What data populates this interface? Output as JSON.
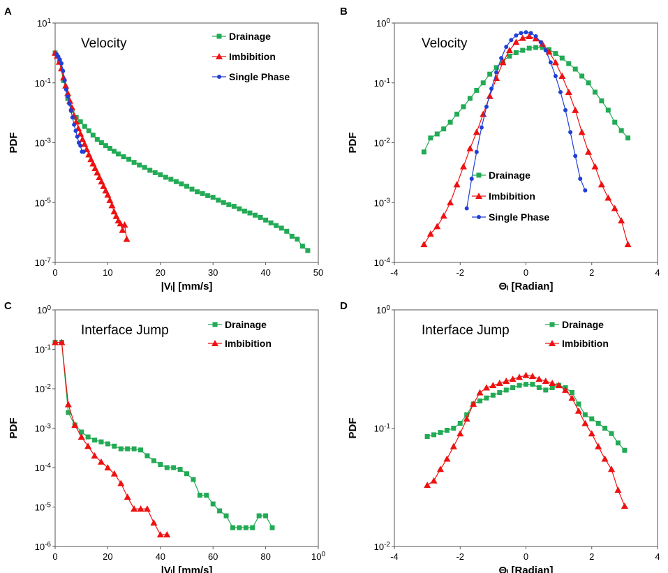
{
  "colors": {
    "Drainage": "#22aa55",
    "Imbibition": "#ee1111",
    "Single Phase": "#1f3fd6"
  },
  "chart_data": [
    {
      "panel": "A",
      "type": "line",
      "title": "Velocity",
      "xlabel": "|Vᵢ|  [mm/s]",
      "ylabel": "PDF",
      "xlim": [
        0,
        50
      ],
      "xticks": [
        "0",
        "10",
        "20",
        "30",
        "40",
        "50"
      ],
      "ylog": [
        -7,
        1
      ],
      "yticks": [
        "10-7",
        "10-5",
        "10-3",
        "10-1",
        "101"
      ],
      "series": [
        {
          "name": "Drainage",
          "marker": "square",
          "x": [
            0,
            0.8,
            1.6,
            2.4,
            3.2,
            4.0,
            4.8,
            5.6,
            6.4,
            7.2,
            8.0,
            8.8,
            9.6,
            10.4,
            11.2,
            12.0,
            13.0,
            14.0,
            15.0,
            16.0,
            17.0,
            18.0,
            19.0,
            20.0,
            21.0,
            22.0,
            23.0,
            24.0,
            25.0,
            26.0,
            27.0,
            28.0,
            29.0,
            30.0,
            31.0,
            32.0,
            33.0,
            34.0,
            35.0,
            36.0,
            37.0,
            38.0,
            39.0,
            40.0,
            41.0,
            42.0,
            43.0,
            44.0,
            45.0,
            46.0,
            47.0,
            48.0
          ],
          "y": [
            1.0,
            0.5,
            0.12,
            0.03,
            0.012,
            0.007,
            0.005,
            0.0035,
            0.0025,
            0.0018,
            0.0013,
            0.001,
            0.0008,
            0.00065,
            0.00052,
            0.00042,
            0.00034,
            0.00028,
            0.00022,
            0.00018,
            0.00015,
            0.00012,
            0.0001,
            8.5e-05,
            7e-05,
            6e-05,
            5e-05,
            4.2e-05,
            3.5e-05,
            2.8e-05,
            2.3e-05,
            2e-05,
            1.7e-05,
            1.5e-05,
            1.2e-05,
            1e-05,
            8.5e-06,
            7.5e-06,
            6.2e-06,
            5.2e-06,
            4.5e-06,
            3.8e-06,
            3.2e-06,
            2.6e-06,
            2.1e-06,
            1.7e-06,
            1.4e-06,
            1.1e-06,
            7.5e-07,
            6e-07,
            3.5e-07,
            2.5e-07
          ]
        },
        {
          "name": "Imbibition",
          "marker": "triangle",
          "x": [
            0,
            0.4,
            0.8,
            1.2,
            1.6,
            2.0,
            2.4,
            2.8,
            3.2,
            3.6,
            4.0,
            4.4,
            4.8,
            5.2,
            5.6,
            6.0,
            6.4,
            6.8,
            7.2,
            7.6,
            8.0,
            8.4,
            8.8,
            9.2,
            9.6,
            10.0,
            10.4,
            10.8,
            11.2,
            11.6,
            12.0,
            12.4,
            12.8,
            13.2,
            13.6
          ],
          "y": [
            1.0,
            0.8,
            0.5,
            0.3,
            0.15,
            0.08,
            0.045,
            0.025,
            0.015,
            0.008,
            0.005,
            0.003,
            0.002,
            0.0013,
            0.0009,
            0.0006,
            0.0004,
            0.00028,
            0.0002,
            0.00014,
            0.0001,
            7e-05,
            5e-05,
            3.5e-05,
            2.5e-05,
            1.8e-05,
            1.2e-05,
            8e-06,
            5e-06,
            3.5e-06,
            2.5e-06,
            2e-06,
            1.2e-06,
            1.8e-06,
            6e-07
          ]
        },
        {
          "name": "Single Phase",
          "marker": "circle",
          "x": [
            0.3,
            0.6,
            0.9,
            1.2,
            1.5,
            1.8,
            2.1,
            2.4,
            2.7,
            3.0,
            3.3,
            3.6,
            3.9,
            4.2,
            4.5,
            4.8,
            5.1,
            5.4
          ],
          "y": [
            0.9,
            0.75,
            0.6,
            0.45,
            0.25,
            0.12,
            0.06,
            0.035,
            0.02,
            0.012,
            0.007,
            0.004,
            0.0025,
            0.0016,
            0.001,
            0.0008,
            0.0005,
            0.0005
          ]
        }
      ],
      "legend_position": "top-right"
    },
    {
      "panel": "B",
      "type": "line",
      "title": "Velocity",
      "xlabel": "Θᵢ [Radian]",
      "ylabel": "PDF",
      "xlim": [
        -4,
        4
      ],
      "xticks": [
        "-4",
        "-2",
        "0",
        "2",
        "4"
      ],
      "ylog": [
        -4,
        0
      ],
      "yticks": [
        "10-4",
        "10-3",
        "10-2",
        "10-1",
        "100"
      ],
      "series": [
        {
          "name": "Drainage",
          "marker": "square",
          "x": [
            -3.1,
            -2.9,
            -2.7,
            -2.5,
            -2.3,
            -2.1,
            -1.9,
            -1.7,
            -1.5,
            -1.3,
            -1.1,
            -0.9,
            -0.7,
            -0.5,
            -0.3,
            -0.1,
            0.1,
            0.3,
            0.5,
            0.7,
            0.9,
            1.1,
            1.3,
            1.5,
            1.7,
            1.9,
            2.1,
            2.3,
            2.5,
            2.7,
            2.9,
            3.1
          ],
          "y": [
            0.007,
            0.012,
            0.014,
            0.017,
            0.022,
            0.03,
            0.04,
            0.055,
            0.075,
            0.1,
            0.14,
            0.18,
            0.23,
            0.28,
            0.32,
            0.35,
            0.38,
            0.39,
            0.39,
            0.36,
            0.31,
            0.26,
            0.21,
            0.17,
            0.13,
            0.1,
            0.07,
            0.05,
            0.035,
            0.022,
            0.016,
            0.012
          ]
        },
        {
          "name": "Imbibition",
          "marker": "triangle",
          "x": [
            -3.1,
            -2.9,
            -2.7,
            -2.5,
            -2.3,
            -2.1,
            -1.9,
            -1.7,
            -1.5,
            -1.3,
            -1.1,
            -0.9,
            -0.7,
            -0.5,
            -0.3,
            -0.1,
            0.1,
            0.3,
            0.5,
            0.7,
            0.9,
            1.1,
            1.3,
            1.5,
            1.7,
            1.9,
            2.1,
            2.3,
            2.5,
            2.7,
            2.9,
            3.1
          ],
          "y": [
            0.0002,
            0.0003,
            0.0004,
            0.0006,
            0.001,
            0.002,
            0.004,
            0.008,
            0.015,
            0.03,
            0.06,
            0.12,
            0.22,
            0.35,
            0.48,
            0.56,
            0.6,
            0.55,
            0.45,
            0.33,
            0.22,
            0.13,
            0.07,
            0.035,
            0.015,
            0.007,
            0.004,
            0.002,
            0.0012,
            0.0008,
            0.0005,
            0.0002
          ]
        },
        {
          "name": "Single Phase",
          "marker": "circle",
          "x": [
            -1.8,
            -1.65,
            -1.5,
            -1.35,
            -1.2,
            -1.05,
            -0.9,
            -0.75,
            -0.6,
            -0.45,
            -0.3,
            -0.15,
            0,
            0.15,
            0.3,
            0.45,
            0.6,
            0.75,
            0.9,
            1.05,
            1.2,
            1.35,
            1.5,
            1.65,
            1.8
          ],
          "y": [
            0.0008,
            0.0025,
            0.007,
            0.018,
            0.04,
            0.08,
            0.15,
            0.26,
            0.4,
            0.52,
            0.62,
            0.68,
            0.7,
            0.68,
            0.6,
            0.48,
            0.35,
            0.22,
            0.13,
            0.07,
            0.035,
            0.015,
            0.006,
            0.0025,
            0.0016
          ]
        }
      ],
      "legend_position": "bottom-center"
    },
    {
      "panel": "C",
      "type": "line",
      "title": "Interface Jump",
      "xlabel": "|Vᵢ|  [mm/s]",
      "ylabel": "PDF",
      "xlim": [
        0,
        100
      ],
      "xticks": [
        "0",
        "20",
        "40",
        "60",
        "80",
        "100"
      ],
      "ylog": [
        -6,
        0
      ],
      "yticks": [
        "10-6",
        "10-5",
        "10-4",
        "10-3",
        "10-2",
        "10-1",
        "100"
      ],
      "series": [
        {
          "name": "Drainage",
          "marker": "square",
          "x": [
            0,
            2.5,
            5,
            7.5,
            10,
            12.5,
            15,
            17.5,
            20,
            22.5,
            25,
            27.5,
            30,
            32.5,
            35,
            37.5,
            40,
            42.5,
            45,
            47.5,
            50,
            52.5,
            55,
            57.5,
            60,
            62.5,
            65,
            67.5,
            70,
            72.5,
            75,
            77.5,
            80,
            82.5
          ],
          "y": [
            0.15,
            0.15,
            0.0025,
            0.0012,
            0.0008,
            0.0006,
            0.0005,
            0.00045,
            0.0004,
            0.00035,
            0.0003,
            0.0003,
            0.0003,
            0.00028,
            0.0002,
            0.00015,
            0.00012,
            0.0001,
            0.0001,
            9e-05,
            7e-05,
            5e-05,
            2e-05,
            2e-05,
            1.2e-05,
            8e-06,
            6e-06,
            3e-06,
            3e-06,
            3e-06,
            3e-06,
            6e-06,
            6e-06,
            3e-06
          ]
        },
        {
          "name": "Imbibition",
          "marker": "triangle",
          "x": [
            0,
            2.5,
            5,
            7.5,
            10,
            12.5,
            15,
            17.5,
            20,
            22.5,
            25,
            27.5,
            30,
            32.5,
            35,
            37.5,
            40,
            42.5
          ],
          "y": [
            0.15,
            0.15,
            0.004,
            0.0012,
            0.0006,
            0.00035,
            0.0002,
            0.00014,
            0.0001,
            7e-05,
            4e-05,
            1.8e-05,
            9e-06,
            9e-06,
            9e-06,
            4e-06,
            2e-06,
            2e-06
          ]
        }
      ],
      "legend_position": "top-right"
    },
    {
      "panel": "D",
      "type": "line",
      "title": "Interface Jump",
      "xlabel": "Θᵢ [Radian]",
      "ylabel": "PDF",
      "xlim": [
        -4,
        4
      ],
      "xticks": [
        "-4",
        "-2",
        "0",
        "2",
        "4"
      ],
      "ylog": [
        -2,
        0
      ],
      "yticks": [
        "10-2",
        "10-1",
        "100"
      ],
      "series": [
        {
          "name": "Drainage",
          "marker": "square",
          "x": [
            -3.0,
            -2.8,
            -2.6,
            -2.4,
            -2.2,
            -2.0,
            -1.8,
            -1.6,
            -1.4,
            -1.2,
            -1.0,
            -0.8,
            -0.6,
            -0.4,
            -0.2,
            0,
            0.2,
            0.4,
            0.6,
            0.8,
            1.0,
            1.2,
            1.4,
            1.6,
            1.8,
            2.0,
            2.2,
            2.4,
            2.6,
            2.8,
            3.0
          ],
          "y": [
            0.085,
            0.088,
            0.092,
            0.096,
            0.1,
            0.11,
            0.13,
            0.16,
            0.17,
            0.18,
            0.19,
            0.2,
            0.21,
            0.22,
            0.23,
            0.235,
            0.235,
            0.22,
            0.21,
            0.22,
            0.23,
            0.22,
            0.2,
            0.16,
            0.13,
            0.12,
            0.11,
            0.1,
            0.09,
            0.075,
            0.065
          ]
        },
        {
          "name": "Imbibition",
          "marker": "triangle",
          "x": [
            -3.0,
            -2.8,
            -2.6,
            -2.4,
            -2.2,
            -2.0,
            -1.8,
            -1.6,
            -1.4,
            -1.2,
            -1.0,
            -0.8,
            -0.6,
            -0.4,
            -0.2,
            0,
            0.2,
            0.4,
            0.6,
            0.8,
            1.0,
            1.2,
            1.4,
            1.6,
            1.8,
            2.0,
            2.2,
            2.4,
            2.6,
            2.8,
            3.0
          ],
          "y": [
            0.033,
            0.036,
            0.045,
            0.055,
            0.07,
            0.09,
            0.12,
            0.16,
            0.2,
            0.22,
            0.23,
            0.24,
            0.25,
            0.26,
            0.27,
            0.28,
            0.275,
            0.26,
            0.25,
            0.24,
            0.23,
            0.21,
            0.18,
            0.14,
            0.11,
            0.09,
            0.07,
            0.055,
            0.045,
            0.03,
            0.022
          ]
        }
      ],
      "legend_position": "top-right"
    }
  ]
}
